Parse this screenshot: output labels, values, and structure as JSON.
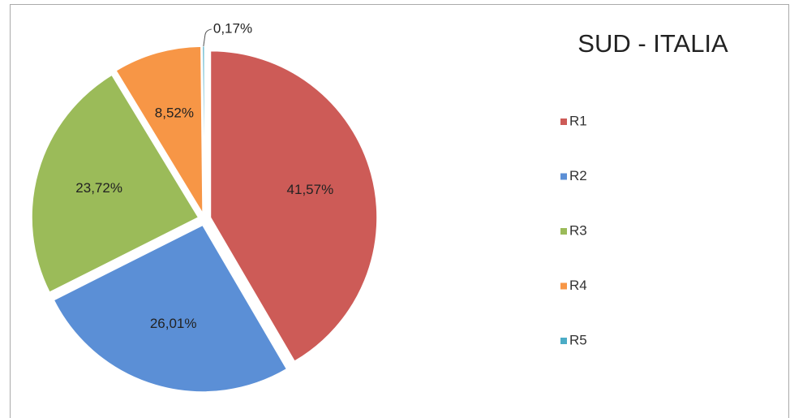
{
  "chart_data": {
    "type": "pie",
    "title": "SUD - ITALIA",
    "categories": [
      "R1",
      "R2",
      "R3",
      "R4",
      "R5"
    ],
    "values": [
      41.57,
      26.01,
      23.72,
      8.52,
      0.17
    ],
    "value_labels": [
      "41,57%",
      "26,01%",
      "23,72%",
      "8,52%",
      "0,17%"
    ],
    "colors": [
      "#cd5b57",
      "#5b8fd6",
      "#9bbb59",
      "#f79646",
      "#4bacc6"
    ],
    "legend": "right"
  }
}
